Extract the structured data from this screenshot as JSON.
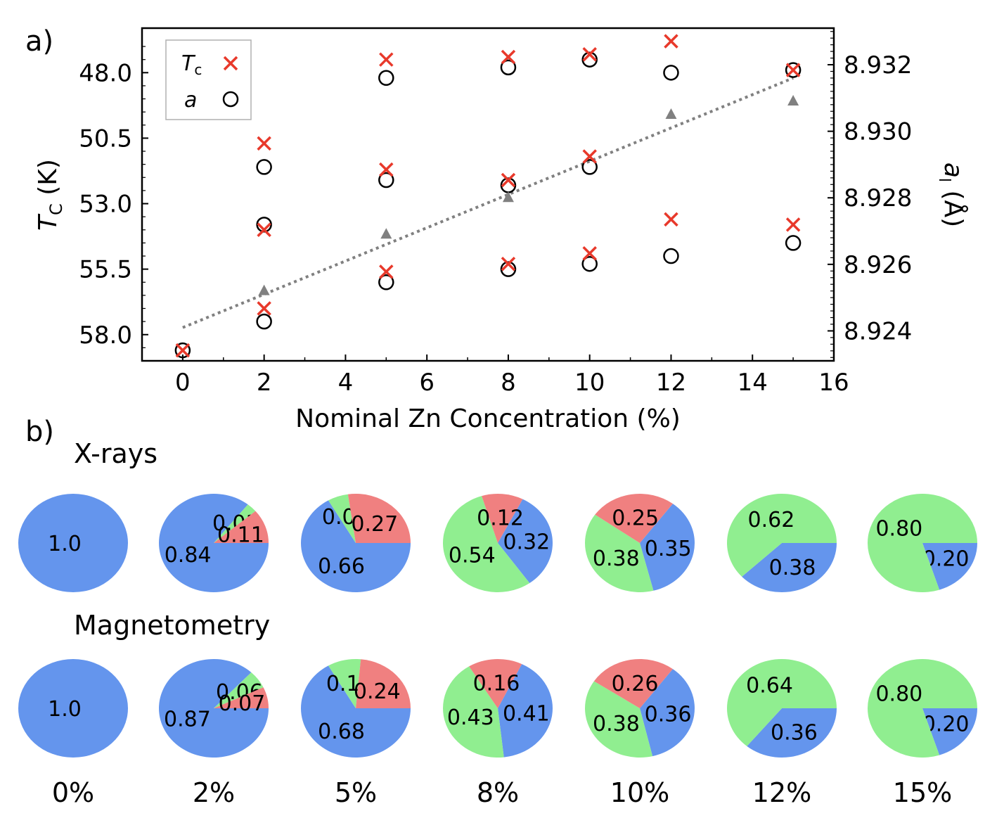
{
  "panel_labels": {
    "a": "a)",
    "b": "b)"
  },
  "chart_data": [
    {
      "type": "scatter",
      "xlabel": "Nominal Zn Concentration (%)",
      "ylabel_left": {
        "main": "T",
        "sub": "C",
        "unit": " (K)"
      },
      "ylabel_right": {
        "main": "a",
        "sub": "l",
        "unit": " (Å)"
      },
      "xlim": [
        -1,
        16
      ],
      "xticks": [
        0,
        2,
        4,
        6,
        8,
        10,
        12,
        14,
        16
      ],
      "ylim_left_inverted": [
        59.0,
        46.3
      ],
      "yticks_left": [
        "48.0",
        "50.5",
        "53.0",
        "55.5",
        "58.0"
      ],
      "ylim_right": [
        8.9231,
        8.9331
      ],
      "yticks_right": [
        "8.924",
        "8.926",
        "8.928",
        "8.930",
        "8.932"
      ],
      "legend": {
        "placement": "top-left",
        "entries": [
          {
            "main": "T",
            "sub": "c",
            "marker": "cross",
            "color": "#e8392b"
          },
          {
            "main": "a",
            "sub": "",
            "marker": "circle",
            "color": "#000000"
          }
        ]
      },
      "colors": {
        "tc": "#e8392b",
        "a": "#000000",
        "fit": "#808080"
      },
      "series": [
        {
          "marker": "cross",
          "axis": "left",
          "x": [
            0,
            2,
            2,
            2,
            5,
            5,
            5,
            8,
            8,
            8,
            10,
            10,
            10,
            12,
            12,
            15,
            15
          ],
          "y": [
            58.6,
            50.7,
            54.0,
            57.0,
            47.5,
            51.7,
            55.6,
            47.4,
            52.1,
            55.3,
            47.3,
            51.2,
            54.9,
            46.8,
            53.6,
            47.9,
            53.8
          ]
        },
        {
          "marker": "circle",
          "axis": "left",
          "x": [
            0,
            2,
            2,
            2,
            5,
            5,
            5,
            8,
            8,
            8,
            10,
            10,
            10,
            12,
            12,
            15,
            15
          ],
          "y": [
            58.6,
            51.6,
            53.8,
            57.5,
            48.2,
            52.1,
            56.0,
            47.8,
            52.3,
            55.5,
            47.5,
            51.6,
            55.3,
            48.0,
            55.0,
            47.9,
            54.5
          ]
        },
        {
          "marker": "triangle",
          "axis": "right",
          "x": [
            2,
            5,
            8,
            12,
            15
          ],
          "y": [
            8.9252,
            8.9269,
            8.928,
            8.9305,
            8.9309
          ]
        },
        {
          "marker": "dotted-line",
          "axis": "right",
          "x": [
            0,
            15
          ],
          "y": [
            8.9241,
            8.9316
          ]
        }
      ]
    },
    {
      "type": "pie",
      "rows": [
        {
          "label": "X-rays",
          "pies": [
            {
              "slices": [
                {
                  "value": 1.0,
                  "label": "1.0",
                  "color": "#6495ed"
                }
              ]
            },
            {
              "slices": [
                {
                  "value": 0.84,
                  "label": "0.84",
                  "color": "#6495ed"
                },
                {
                  "value": 0.03,
                  "label": "0.03",
                  "color": "#90ee90"
                },
                {
                  "value": 0.11,
                  "label": "0.11",
                  "color": "#f08080"
                }
              ]
            },
            {
              "slices": [
                {
                  "value": 0.66,
                  "label": "0.66",
                  "color": "#6495ed"
                },
                {
                  "value": 0.06,
                  "label": "0.06",
                  "color": "#90ee90"
                },
                {
                  "value": 0.27,
                  "label": "0.27",
                  "color": "#f08080"
                }
              ]
            },
            {
              "slices": [
                {
                  "value": 0.32,
                  "label": "0.32",
                  "color": "#6495ed"
                },
                {
                  "value": 0.54,
                  "label": "0.54",
                  "color": "#90ee90"
                },
                {
                  "value": 0.12,
                  "label": "0.12",
                  "color": "#f08080"
                }
              ]
            },
            {
              "slices": [
                {
                  "value": 0.35,
                  "label": "0.35",
                  "color": "#6495ed"
                },
                {
                  "value": 0.38,
                  "label": "0.38",
                  "color": "#90ee90"
                },
                {
                  "value": 0.25,
                  "label": "0.25",
                  "color": "#f08080"
                }
              ]
            },
            {
              "slices": [
                {
                  "value": 0.38,
                  "label": "0.38",
                  "color": "#6495ed"
                },
                {
                  "value": 0.62,
                  "label": "0.62",
                  "color": "#90ee90"
                }
              ]
            },
            {
              "slices": [
                {
                  "value": 0.2,
                  "label": "0.20",
                  "color": "#6495ed"
                },
                {
                  "value": 0.8,
                  "label": "0.80",
                  "color": "#90ee90"
                }
              ]
            }
          ]
        },
        {
          "label": "Magnetometry",
          "pies": [
            {
              "slices": [
                {
                  "value": 1.0,
                  "label": "1.0",
                  "color": "#6495ed"
                }
              ]
            },
            {
              "slices": [
                {
                  "value": 0.87,
                  "label": "0.87",
                  "color": "#6495ed"
                },
                {
                  "value": 0.06,
                  "label": "0.06",
                  "color": "#90ee90"
                },
                {
                  "value": 0.07,
                  "label": "0.07",
                  "color": "#f08080"
                }
              ]
            },
            {
              "slices": [
                {
                  "value": 0.68,
                  "label": "0.68",
                  "color": "#6495ed"
                },
                {
                  "value": 0.1,
                  "label": "0.10",
                  "color": "#90ee90"
                },
                {
                  "value": 0.24,
                  "label": "0.24",
                  "color": "#f08080"
                }
              ]
            },
            {
              "slices": [
                {
                  "value": 0.41,
                  "label": "0.41",
                  "color": "#6495ed"
                },
                {
                  "value": 0.43,
                  "label": "0.43",
                  "color": "#90ee90"
                },
                {
                  "value": 0.16,
                  "label": "0.16",
                  "color": "#f08080"
                }
              ]
            },
            {
              "slices": [
                {
                  "value": 0.36,
                  "label": "0.36",
                  "color": "#6495ed"
                },
                {
                  "value": 0.38,
                  "label": "0.38",
                  "color": "#90ee90"
                },
                {
                  "value": 0.26,
                  "label": "0.26",
                  "color": "#f08080"
                }
              ]
            },
            {
              "slices": [
                {
                  "value": 0.36,
                  "label": "0.36",
                  "color": "#6495ed"
                },
                {
                  "value": 0.64,
                  "label": "0.64",
                  "color": "#90ee90"
                }
              ]
            },
            {
              "slices": [
                {
                  "value": 0.2,
                  "label": "0.20",
                  "color": "#6495ed"
                },
                {
                  "value": 0.8,
                  "label": "0.80",
                  "color": "#90ee90"
                }
              ]
            }
          ]
        }
      ],
      "column_labels": [
        "0%",
        "2%",
        "5%",
        "8%",
        "10%",
        "12%",
        "15%"
      ]
    }
  ]
}
